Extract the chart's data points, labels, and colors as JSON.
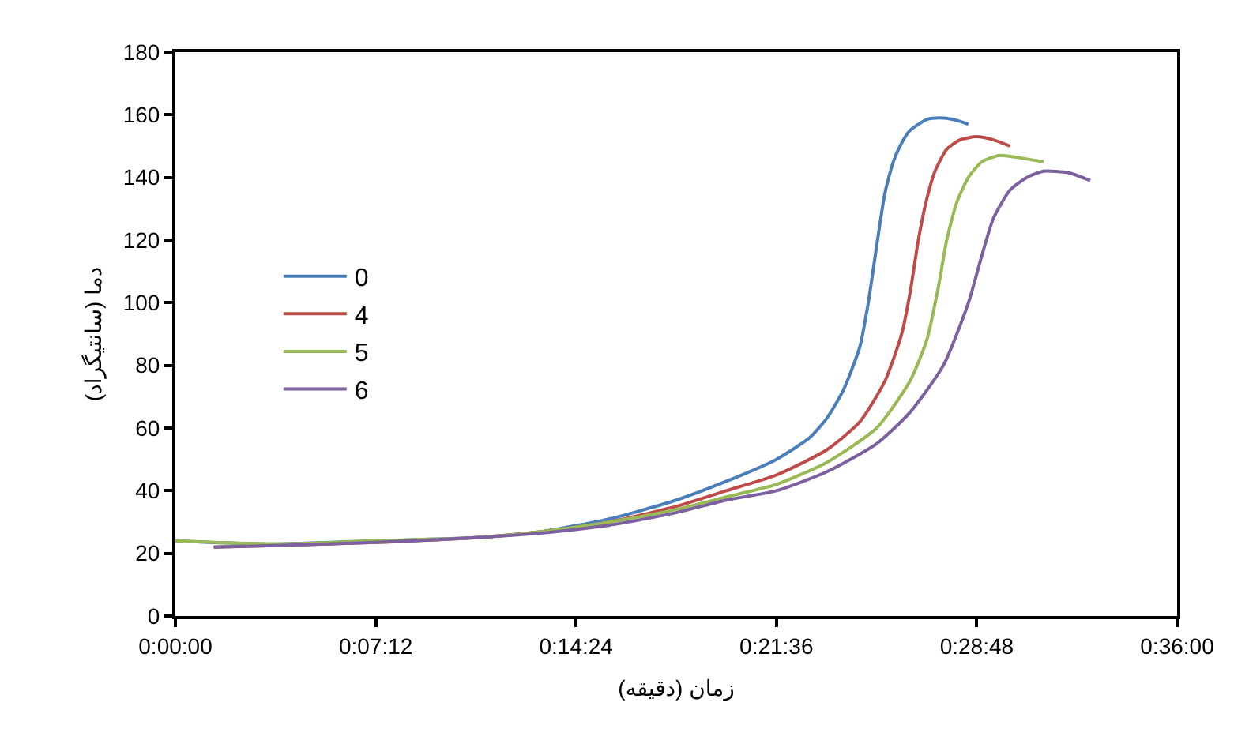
{
  "chart_data": {
    "type": "line",
    "xlabel": "زمان (دقیقه)",
    "ylabel": "دما (سانتیگراد)",
    "xlim": [
      0,
      0.6
    ],
    "xticks": [
      {
        "value": 0,
        "label": "0:00:00"
      },
      {
        "value": 0.12,
        "label": "0:07:12"
      },
      {
        "value": 0.24,
        "label": "0:14:24"
      },
      {
        "value": 0.36,
        "label": "0:21:36"
      },
      {
        "value": 0.48,
        "label": "0:28:48"
      },
      {
        "value": 0.6,
        "label": "0:36:00"
      }
    ],
    "ylim": [
      0,
      180
    ],
    "yticks": [
      0,
      20,
      40,
      60,
      80,
      100,
      120,
      140,
      160,
      180
    ],
    "grid": false,
    "legend": "left",
    "marker": "none",
    "line_style": "solid",
    "series": [
      {
        "name": "0",
        "color": "#4a7ebb",
        "x": [
          0,
          0.02,
          0.06,
          0.12,
          0.18,
          0.22,
          0.26,
          0.3,
          0.33,
          0.36,
          0.38,
          0.39,
          0.4,
          0.41,
          0.415,
          0.42,
          0.425,
          0.43,
          0.435,
          0.44,
          0.45,
          0.458,
          0.466,
          0.475
        ],
        "values": [
          24,
          23.5,
          23,
          24,
          25,
          27,
          31,
          37,
          43,
          50,
          57,
          63,
          72,
          86,
          100,
          118,
          135,
          145,
          151,
          155,
          158.5,
          159,
          158.5,
          157
        ]
      },
      {
        "name": "4",
        "color": "#be4b48",
        "x": [
          0.023,
          0.06,
          0.12,
          0.18,
          0.22,
          0.26,
          0.3,
          0.33,
          0.36,
          0.39,
          0.41,
          0.425,
          0.435,
          0.44,
          0.445,
          0.45,
          0.455,
          0.462,
          0.47,
          0.48,
          0.49,
          0.5
        ],
        "values": [
          22,
          22.5,
          23.5,
          25,
          27,
          30,
          35,
          40,
          45,
          53,
          62,
          75,
          90,
          103,
          120,
          133,
          142,
          149,
          152,
          153,
          152,
          150
        ]
      },
      {
        "name": "5",
        "color": "#98b954",
        "x": [
          0,
          0.06,
          0.12,
          0.18,
          0.22,
          0.26,
          0.3,
          0.33,
          0.36,
          0.39,
          0.42,
          0.44,
          0.45,
          0.457,
          0.462,
          0.468,
          0.475,
          0.483,
          0.493,
          0.503,
          0.52
        ],
        "values": [
          24,
          23,
          24,
          25,
          27,
          30,
          34,
          38,
          42,
          49,
          60,
          75,
          88,
          105,
          120,
          132,
          140,
          145,
          147,
          146.5,
          145
        ]
      },
      {
        "name": "6",
        "color": "#7d60a0",
        "x": [
          0.023,
          0.06,
          0.12,
          0.18,
          0.22,
          0.26,
          0.3,
          0.33,
          0.36,
          0.39,
          0.42,
          0.44,
          0.46,
          0.475,
          0.483,
          0.49,
          0.5,
          0.51,
          0.52,
          0.535,
          0.548
        ],
        "values": [
          22,
          22.5,
          23.5,
          25,
          26.5,
          29,
          33,
          37,
          40,
          46,
          55,
          65,
          80,
          100,
          115,
          127,
          136,
          140,
          142,
          141.5,
          139
        ]
      }
    ]
  }
}
